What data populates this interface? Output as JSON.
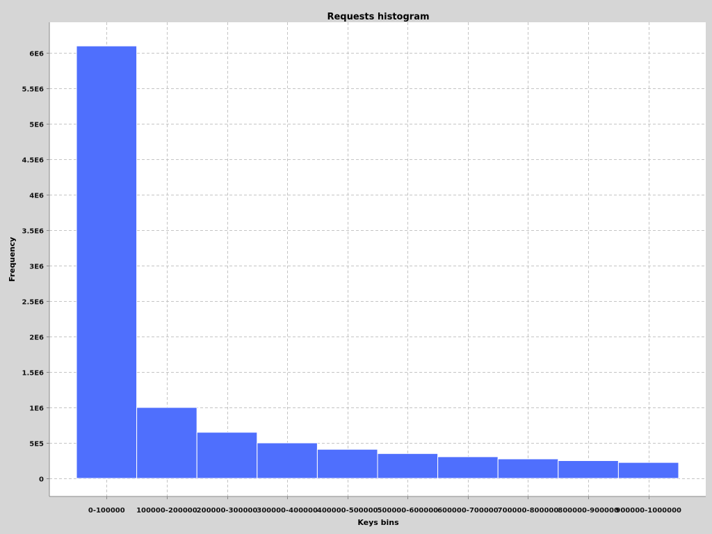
{
  "chart_data": {
    "type": "bar",
    "title": "Requests histogram",
    "xlabel": "Keys bins",
    "ylabel": "Frequency",
    "categories": [
      "0-100000",
      "100000-200000",
      "200000-300000",
      "300000-400000",
      "400000-500000",
      "500000-600000",
      "600000-700000",
      "700000-800000",
      "800000-900000",
      "900000-1000000"
    ],
    "values": [
      6100000,
      1000000,
      650000,
      500000,
      410000,
      350000,
      305000,
      275000,
      250000,
      225000
    ],
    "ylim": [
      0,
      6150000
    ],
    "yticks": [
      {
        "value": 0,
        "label": "0"
      },
      {
        "value": 500000,
        "label": "5E5"
      },
      {
        "value": 1000000,
        "label": "1E6"
      },
      {
        "value": 1500000,
        "label": "1.5E6"
      },
      {
        "value": 2000000,
        "label": "2E6"
      },
      {
        "value": 2500000,
        "label": "2.5E6"
      },
      {
        "value": 3000000,
        "label": "3E6"
      },
      {
        "value": 3500000,
        "label": "3.5E6"
      },
      {
        "value": 4000000,
        "label": "4E6"
      },
      {
        "value": 4500000,
        "label": "4.5E6"
      },
      {
        "value": 5000000,
        "label": "5E6"
      },
      {
        "value": 5500000,
        "label": "5.5E6"
      },
      {
        "value": 6000000,
        "label": "6E6"
      }
    ],
    "grid": true,
    "legend": "none",
    "bar_color": "#4f6ffd",
    "background_color": "#ffffff",
    "outer_background_color": "#d6d6d6"
  }
}
